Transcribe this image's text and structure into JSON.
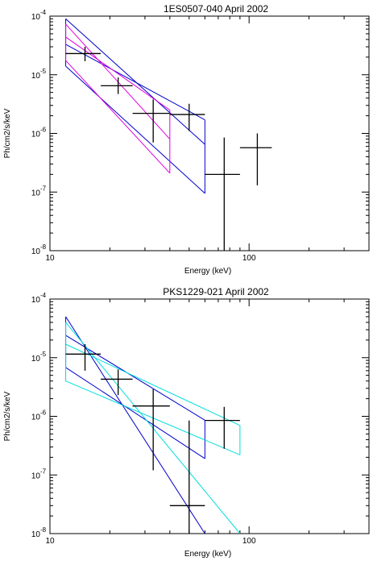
{
  "chart_data": [
    {
      "type": "line",
      "title": "1ES0507-040 April 2002",
      "xlabel": "Energy (keV)",
      "ylabel": "Ph/cm2/s/keV",
      "xscale": "log",
      "yscale": "log",
      "xlim": [
        10,
        400
      ],
      "ylim": [
        1e-08,
        0.0001
      ],
      "x_tick_labels": [
        "10",
        "100"
      ],
      "y_tick_labels": [
        "10",
        "10",
        "10",
        "10",
        "10"
      ],
      "y_tick_exponents": [
        "-8",
        "-7",
        "-6",
        "-5",
        "-4"
      ],
      "y_tick_values": [
        1e-08,
        1e-07,
        1e-06,
        1e-05,
        0.0001
      ],
      "grid": false,
      "data_points": [
        {
          "x": 15,
          "x_lo": 12,
          "x_hi": 18,
          "y": 2.3e-05,
          "y_lo": 1.7e-05,
          "y_hi": 3e-05
        },
        {
          "x": 22,
          "x_lo": 18,
          "x_hi": 26,
          "y": 6.5e-06,
          "y_lo": 4.7e-06,
          "y_hi": 9e-06
        },
        {
          "x": 33,
          "x_lo": 26,
          "x_hi": 40,
          "y": 2.2e-06,
          "y_lo": 7e-07,
          "y_hi": 3.8e-06
        },
        {
          "x": 50,
          "x_lo": 40,
          "x_hi": 60,
          "y": 2.1e-06,
          "y_lo": 1.1e-06,
          "y_hi": 3.2e-06
        },
        {
          "x": 75,
          "x_lo": 60,
          "x_hi": 90,
          "y": 2e-07,
          "y_lo": 1e-08,
          "y_hi": 8.5e-07
        },
        {
          "x": 110,
          "x_lo": 90,
          "x_hi": 130,
          "y": 5.7e-07,
          "y_lo": 1.3e-07,
          "y_hi": 1e-06
        }
      ],
      "bowties": [
        {
          "color": "#0000cc",
          "x_min": 12,
          "x_max": 60,
          "upper": [
            3.3e-05,
            1.7e-06
          ],
          "lower": [
            1.4e-05,
            9.5e-08
          ],
          "tip": [
            9e-05,
            6.5e-07
          ]
        },
        {
          "color": "#dd00dd",
          "x_min": 12,
          "x_max": 40,
          "upper": [
            4.4e-05,
            2.5e-06
          ],
          "lower": [
            1.75e-05,
            2.1e-07
          ],
          "tip": [
            7.3e-05,
            8e-07
          ]
        }
      ]
    },
    {
      "type": "line",
      "title": "PKS1229-021 April 2002",
      "xlabel": "Energy (keV)",
      "ylabel": "Ph/cm2/s/keV",
      "xscale": "log",
      "yscale": "log",
      "xlim": [
        10,
        400
      ],
      "ylim": [
        1e-08,
        0.0001
      ],
      "x_tick_labels": [
        "10",
        "100"
      ],
      "y_tick_labels": [
        "10",
        "10",
        "10",
        "10",
        "10"
      ],
      "y_tick_exponents": [
        "-8",
        "-7",
        "-6",
        "-5",
        "-4"
      ],
      "y_tick_values": [
        1e-08,
        1e-07,
        1e-06,
        1e-05,
        0.0001
      ],
      "grid": false,
      "data_points": [
        {
          "x": 15,
          "x_lo": 12,
          "x_hi": 18,
          "y": 1.15e-05,
          "y_lo": 6e-06,
          "y_hi": 1.7e-05
        },
        {
          "x": 22,
          "x_lo": 18,
          "x_hi": 26,
          "y": 4.3e-06,
          "y_lo": 2.3e-06,
          "y_hi": 6.3e-06
        },
        {
          "x": 33,
          "x_lo": 26,
          "x_hi": 40,
          "y": 1.5e-06,
          "y_lo": 1.2e-07,
          "y_hi": 2.9e-06
        },
        {
          "x": 50,
          "x_lo": 40,
          "x_hi": 60,
          "y": 3e-08,
          "y_lo": 1e-08,
          "y_hi": 8.5e-07
        },
        {
          "x": 75,
          "x_lo": 60,
          "x_hi": 90,
          "y": 8.5e-07,
          "y_lo": 2.8e-07,
          "y_hi": 1.45e-06
        }
      ],
      "bowties": [
        {
          "color": "#0000cc",
          "x_min": 12,
          "x_max": 60,
          "upper": [
            2.4e-05,
            8.6e-07
          ],
          "lower": [
            6.8e-06,
            1.9e-07
          ],
          "tip": [
            5e-05,
            1e-08
          ]
        },
        {
          "color": "#00dddd",
          "x_min": 12,
          "x_max": 90,
          "upper": [
            1.7e-05,
            7e-07
          ],
          "lower": [
            4e-06,
            2.2e-07
          ],
          "tip": [
            4e-05,
            1e-08
          ]
        }
      ]
    }
  ]
}
